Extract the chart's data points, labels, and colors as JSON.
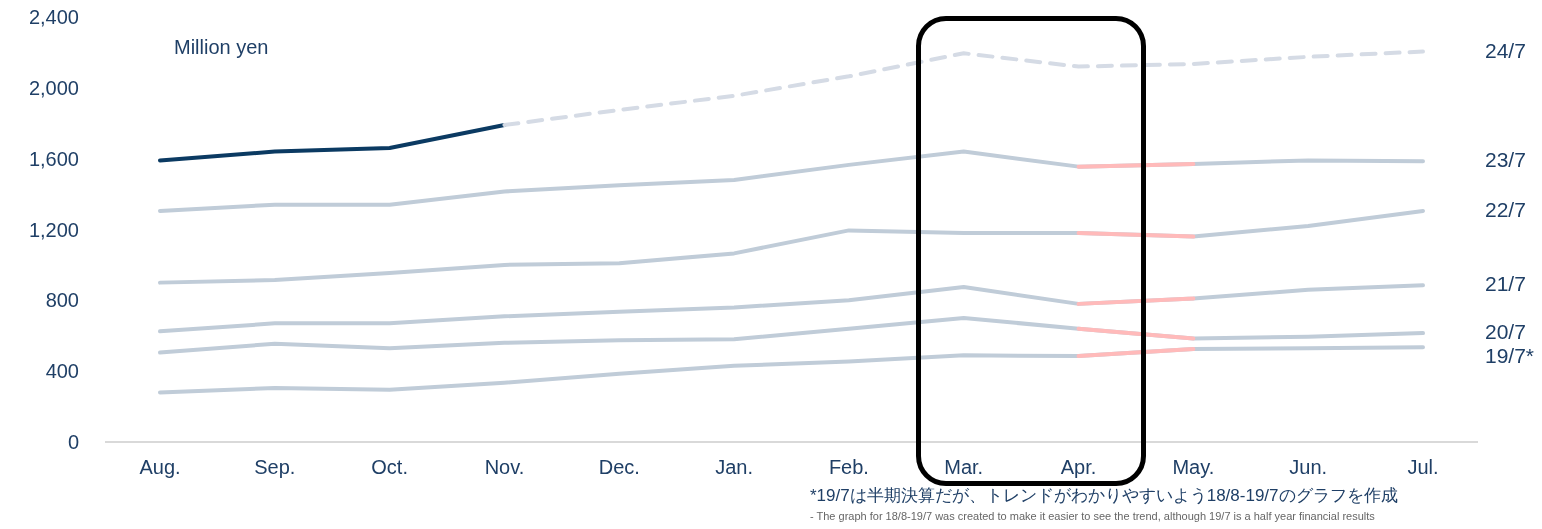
{
  "chart_data": {
    "type": "line",
    "ylabel": "Million yen",
    "categories": [
      "Aug.",
      "Sep.",
      "Oct.",
      "Nov.",
      "Dec.",
      "Jan.",
      "Feb.",
      "Mar.",
      "Apr.",
      "May.",
      "Jun.",
      "Jul."
    ],
    "ylim": [
      0,
      2400
    ],
    "yticks": [
      {
        "value": 0,
        "label": "0"
      },
      {
        "value": 400,
        "label": "400"
      },
      {
        "value": 800,
        "label": "800"
      },
      {
        "value": 1200,
        "label": "1,200"
      },
      {
        "value": 1600,
        "label": "1,600"
      },
      {
        "value": 2000,
        "label": "2,000"
      },
      {
        "value": 2400,
        "label": "2,400"
      }
    ],
    "legend": false,
    "line_style": "solid",
    "series": [
      {
        "name": "19/7*",
        "color": "#c0ccd8",
        "values": [
          280,
          305,
          295,
          335,
          385,
          430,
          455,
          490,
          485,
          525,
          530,
          535
        ]
      },
      {
        "name": "20/7",
        "color": "#c0ccd8",
        "values": [
          505,
          555,
          530,
          560,
          575,
          580,
          640,
          700,
          640,
          585,
          595,
          615
        ]
      },
      {
        "name": "21/7",
        "color": "#c0ccd8",
        "values": [
          625,
          670,
          670,
          710,
          735,
          760,
          800,
          875,
          780,
          810,
          860,
          885
        ]
      },
      {
        "name": "22/7",
        "color": "#c0ccd8",
        "values": [
          900,
          915,
          955,
          1000,
          1010,
          1065,
          1195,
          1180,
          1180,
          1160,
          1220,
          1305
        ]
      },
      {
        "name": "23/7",
        "color": "#c0ccd8",
        "values": [
          1305,
          1340,
          1340,
          1415,
          1450,
          1480,
          1565,
          1640,
          1555,
          1570,
          1590,
          1585
        ]
      },
      {
        "color": "#0b3a62",
        "values": [
          1590,
          1640,
          1660,
          1790,
          null,
          null,
          null,
          null,
          null,
          null,
          null,
          null
        ]
      },
      {
        "name": "24/7",
        "color": "#d5dbe5",
        "line_style": "dashed",
        "values": [
          null,
          null,
          null,
          1790,
          1875,
          1955,
          2065,
          2195,
          2120,
          2135,
          2175,
          2205
        ]
      },
      {
        "color": "#ffbaba",
        "values": [
          null,
          null,
          null,
          null,
          null,
          null,
          null,
          null,
          485,
          525,
          null,
          null
        ]
      },
      {
        "color": "#ffbaba",
        "values": [
          null,
          null,
          null,
          null,
          null,
          null,
          null,
          null,
          640,
          585,
          null,
          null
        ]
      },
      {
        "color": "#ffbaba",
        "values": [
          null,
          null,
          null,
          null,
          null,
          null,
          null,
          null,
          780,
          810,
          null,
          null
        ]
      },
      {
        "color": "#ffbaba",
        "values": [
          null,
          null,
          null,
          null,
          null,
          null,
          null,
          null,
          1180,
          1160,
          null,
          null
        ]
      },
      {
        "color": "#ffbaba",
        "values": [
          null,
          null,
          null,
          null,
          null,
          null,
          null,
          null,
          1555,
          1570,
          null,
          null
        ]
      }
    ],
    "annotations": [
      "*19/7は半期決算だが、トレンドがわかりやすいよう18/8-19/7のグラフを作成",
      "- The graph for 18/8-19/7 was created to make it easier to see the trend, although 19/7 is a half year financial results"
    ]
  }
}
